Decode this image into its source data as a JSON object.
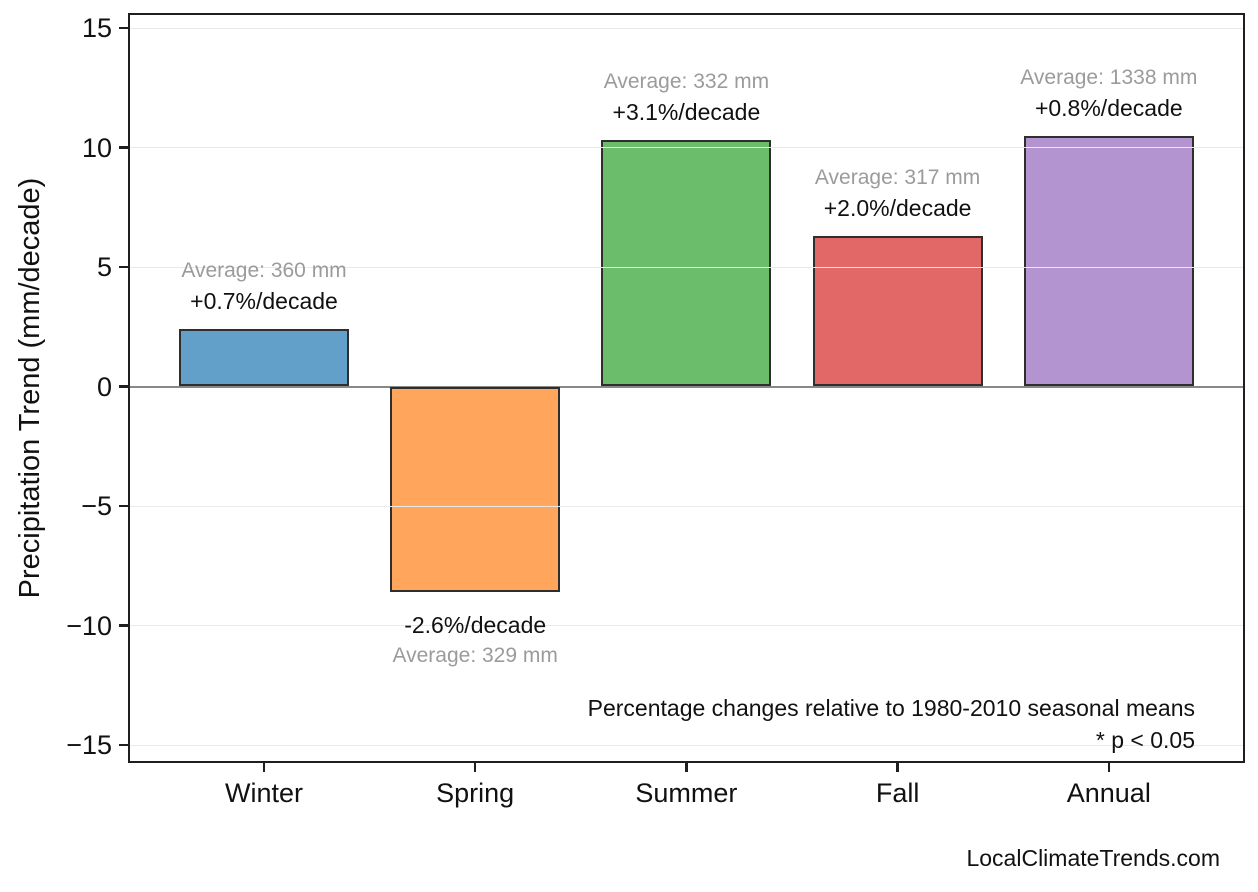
{
  "watermark": "LocalClimateTrends.com",
  "colors": {
    "background": "#ffffff",
    "axis_spine": "#1f1f1f",
    "gridline": "#e9e9e9",
    "zero_line": "#888888",
    "annotation_gray": "#9b9b9b",
    "text_black": "#111111"
  },
  "chart_data": {
    "type": "bar",
    "title": "",
    "xlabel": "",
    "ylabel": "Precipitation Trend (mm/decade)",
    "ylim": [
      -15.7,
      15.7
    ],
    "grid": true,
    "legend": "none",
    "categories": [
      "Winter",
      "Spring",
      "Summer",
      "Fall",
      "Annual"
    ],
    "values": [
      2.4,
      -8.6,
      10.3,
      6.3,
      10.5
    ],
    "bar_colors": [
      "#62A0CA",
      "#FFA55C",
      "#6BBC6B",
      "#E26868",
      "#B494D0"
    ],
    "bar_edge_color": "#2e2e2e",
    "yticks": [
      {
        "value": 15,
        "label": "15"
      },
      {
        "value": 10,
        "label": "10"
      },
      {
        "value": 5,
        "label": "5"
      },
      {
        "value": 0,
        "label": "0"
      },
      {
        "value": -5,
        "label": "−5"
      },
      {
        "value": -10,
        "label": "−10"
      },
      {
        "value": -15,
        "label": "−15"
      }
    ],
    "annotations": [
      {
        "average": "Average: 360 mm",
        "trend": "+0.7%/decade"
      },
      {
        "average": "Average: 329 mm",
        "trend": "-2.6%/decade"
      },
      {
        "average": "Average: 332 mm",
        "trend": "+3.1%/decade"
      },
      {
        "average": "Average: 317 mm",
        "trend": "+2.0%/decade"
      },
      {
        "average": "Average: 1338 mm",
        "trend": "+0.8%/decade"
      }
    ],
    "notes": [
      "Percentage changes relative to 1980-2010 seasonal means",
      "* p < 0.05"
    ]
  }
}
